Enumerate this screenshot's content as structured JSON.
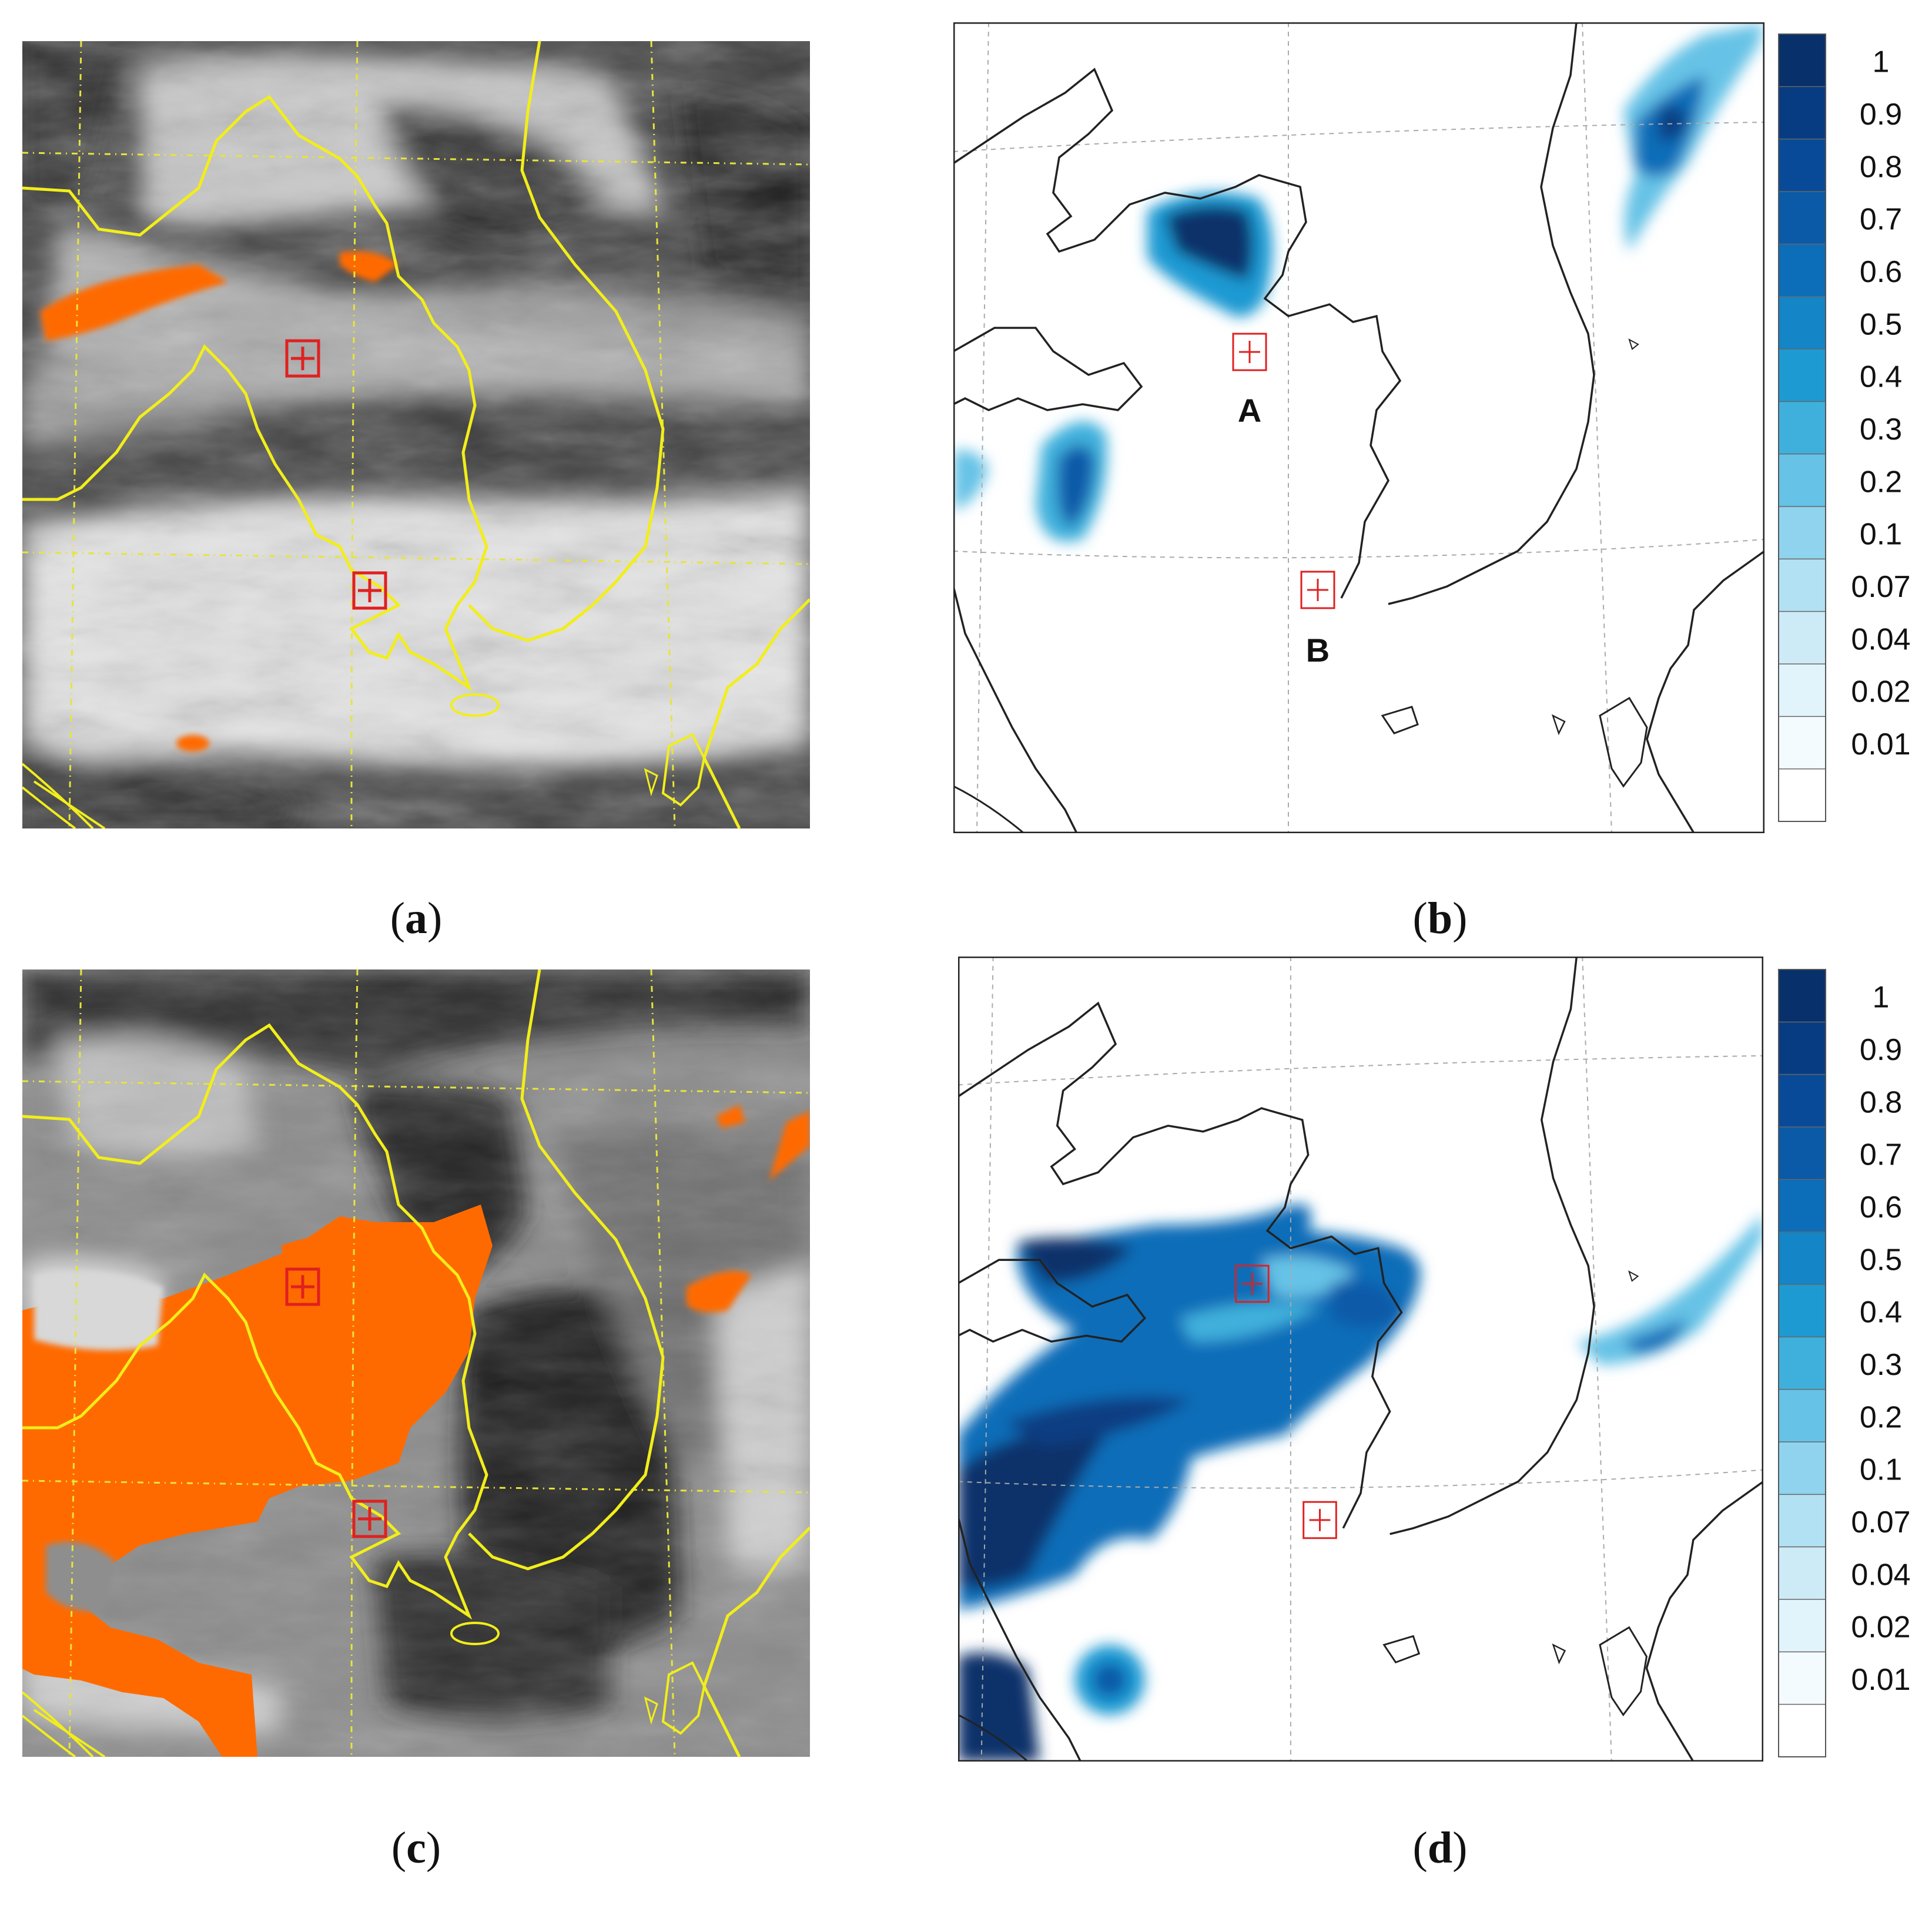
{
  "figure": {
    "panels": [
      {
        "id": "a",
        "caption_letter": "a",
        "kind": "satellite-image",
        "markers": 2
      },
      {
        "id": "b",
        "caption_letter": "b",
        "kind": "model-map",
        "marker_labels": [
          "A",
          "B"
        ]
      },
      {
        "id": "c",
        "caption_letter": "c",
        "kind": "satellite-image",
        "markers": 2
      },
      {
        "id": "d",
        "caption_letter": "d",
        "kind": "model-map",
        "marker_labels": []
      }
    ],
    "colorbar": {
      "levels": [
        "1",
        "0.9",
        "0.8",
        "0.7",
        "0.6",
        "0.5",
        "0.4",
        "0.3",
        "0.2",
        "0.1",
        "0.07",
        "0.04",
        "0.02",
        "0.01"
      ],
      "colors": [
        "#08306b",
        "#083c82",
        "#084a98",
        "#0a5aa8",
        "#0c6db8",
        "#1485c6",
        "#1e9ad3",
        "#3fb0dc",
        "#66c2e6",
        "#8fd3ee",
        "#b2e1f3",
        "#cdebf7",
        "#e2f4fb",
        "#f4fbfe",
        "#ffffff"
      ]
    },
    "colors": {
      "coastline_satellite": "#f2ee1a",
      "dust_flag": "#ff6a00",
      "marker": "#e02020",
      "coastline_map": "#222222"
    }
  }
}
